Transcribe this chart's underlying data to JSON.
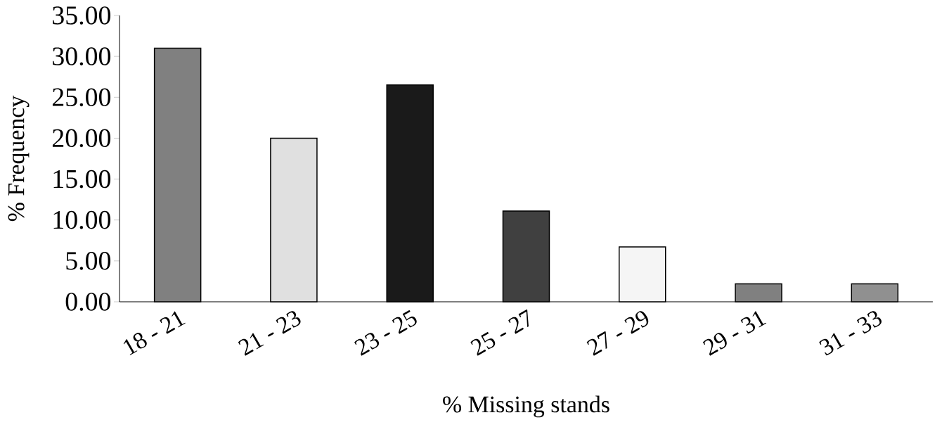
{
  "chart_data": {
    "type": "bar",
    "xlabel": "% Missing stands",
    "ylabel": "% Frequency",
    "categories": [
      "18 - 21",
      "21 - 23",
      "23 - 25",
      "25 - 27",
      "27 - 29",
      "29 - 31",
      "31 - 33"
    ],
    "values": [
      31.0,
      20.0,
      26.5,
      11.1,
      6.7,
      2.2,
      2.2
    ],
    "colors": [
      "#808080",
      "#e0e0e0",
      "#1a1a1a",
      "#404040",
      "#f5f5f5",
      "#808080",
      "#909090"
    ],
    "ylim": [
      0,
      35
    ],
    "yticks": [
      {
        "value": 0,
        "label": "0.00"
      },
      {
        "value": 5,
        "label": "5.00"
      },
      {
        "value": 10,
        "label": "10.00"
      },
      {
        "value": 15,
        "label": "15.00"
      },
      {
        "value": 20,
        "label": "20.00"
      },
      {
        "value": 25,
        "label": "25.00"
      },
      {
        "value": 30,
        "label": "30.00"
      },
      {
        "value": 35,
        "label": "35.00"
      }
    ],
    "grid": false
  }
}
